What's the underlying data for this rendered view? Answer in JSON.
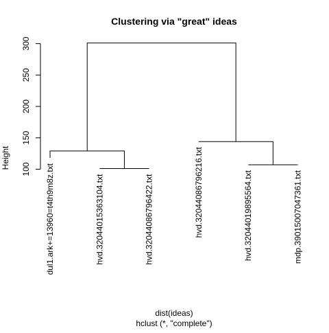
{
  "chart_data": {
    "type": "dendrogram",
    "title": "Clustering via \"great\" ideas",
    "xlabel": "dist(ideas)",
    "sublabel": "hclust (*, \"complete\")",
    "ylabel": "Height",
    "ylim": [
      95,
      305
    ],
    "yticks": [
      100,
      150,
      200,
      250,
      300
    ],
    "leaves": [
      "dul1.ark+=13960=t4th9m8z.txt",
      "hvd.32044015363104.txt",
      "hvd.32044086796422.txt",
      "hvd.32044086796216.txt",
      "hvd.32044019895564.txt",
      "mdp.39015007047361.txt"
    ],
    "merges": [
      {
        "left": 1,
        "right": 2,
        "height": 101
      },
      {
        "left": 0,
        "right": -1,
        "height": 129
      },
      {
        "left": 4,
        "right": 5,
        "height": 107
      },
      {
        "left": 3,
        "right": -3,
        "height": 144
      },
      {
        "left": -2,
        "right": -4,
        "height": 301
      }
    ],
    "leaf_tops": [
      118,
      101,
      101,
      144,
      107,
      107
    ]
  }
}
